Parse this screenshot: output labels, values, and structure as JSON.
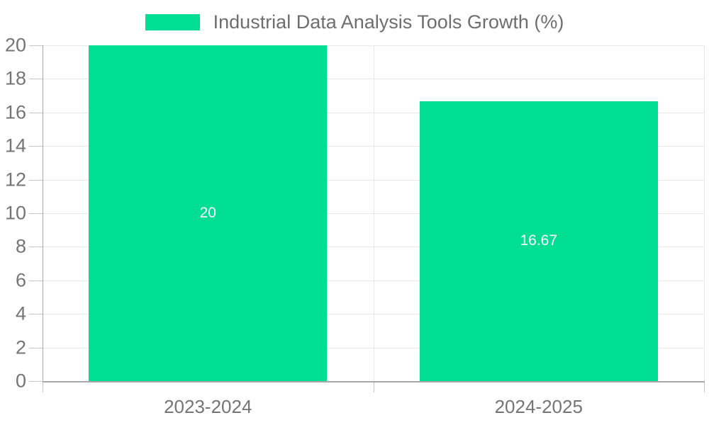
{
  "chart_data": {
    "type": "bar",
    "title": "Industrial Data Analysis Tools Growth (%)",
    "categories": [
      "2023-2024",
      "2024-2025"
    ],
    "values": [
      20,
      16.67
    ],
    "value_labels": [
      "20",
      "16.67"
    ],
    "xlabel": "",
    "ylabel": "",
    "ylim": [
      0,
      20
    ],
    "yticks": [
      0,
      2,
      4,
      6,
      8,
      10,
      12,
      14,
      16,
      18,
      20
    ],
    "grid": true,
    "legend_position": "top-center",
    "colors": {
      "bar": "#00de94",
      "grid_line": "#e8e8e8",
      "axis_line": "#a8a8a8",
      "tick_mark": "#c6c6c6",
      "axis_text": "#757575",
      "legend_text": "#6e6e6e",
      "value_label_text": "#ffffff",
      "background": "#ffffff"
    }
  }
}
